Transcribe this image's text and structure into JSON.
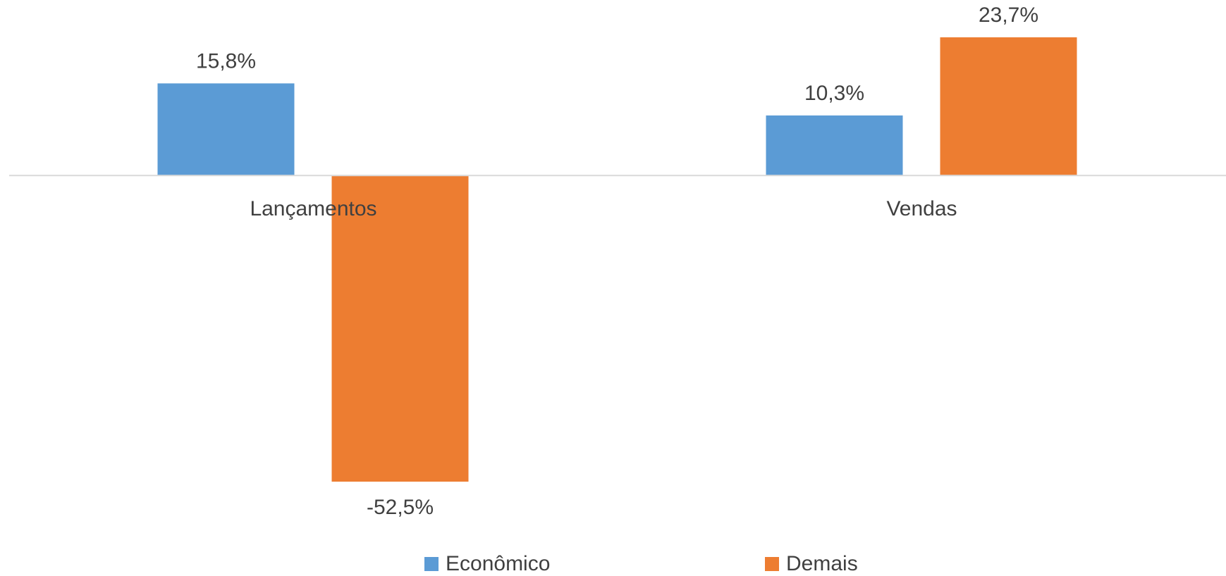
{
  "chart_data": {
    "type": "bar",
    "categories": [
      "Lançamentos",
      "Vendas"
    ],
    "series": [
      {
        "name": "Econômico",
        "color": "#5b9bd5",
        "values": [
          15.8,
          10.3
        ],
        "value_labels": [
          "15,8%",
          "10,3%"
        ]
      },
      {
        "name": "Demais",
        "color": "#ed7d31",
        "values": [
          -52.5,
          23.7
        ],
        "value_labels": [
          "-52,5%",
          "23,7%"
        ]
      }
    ],
    "legend": "bottom"
  }
}
